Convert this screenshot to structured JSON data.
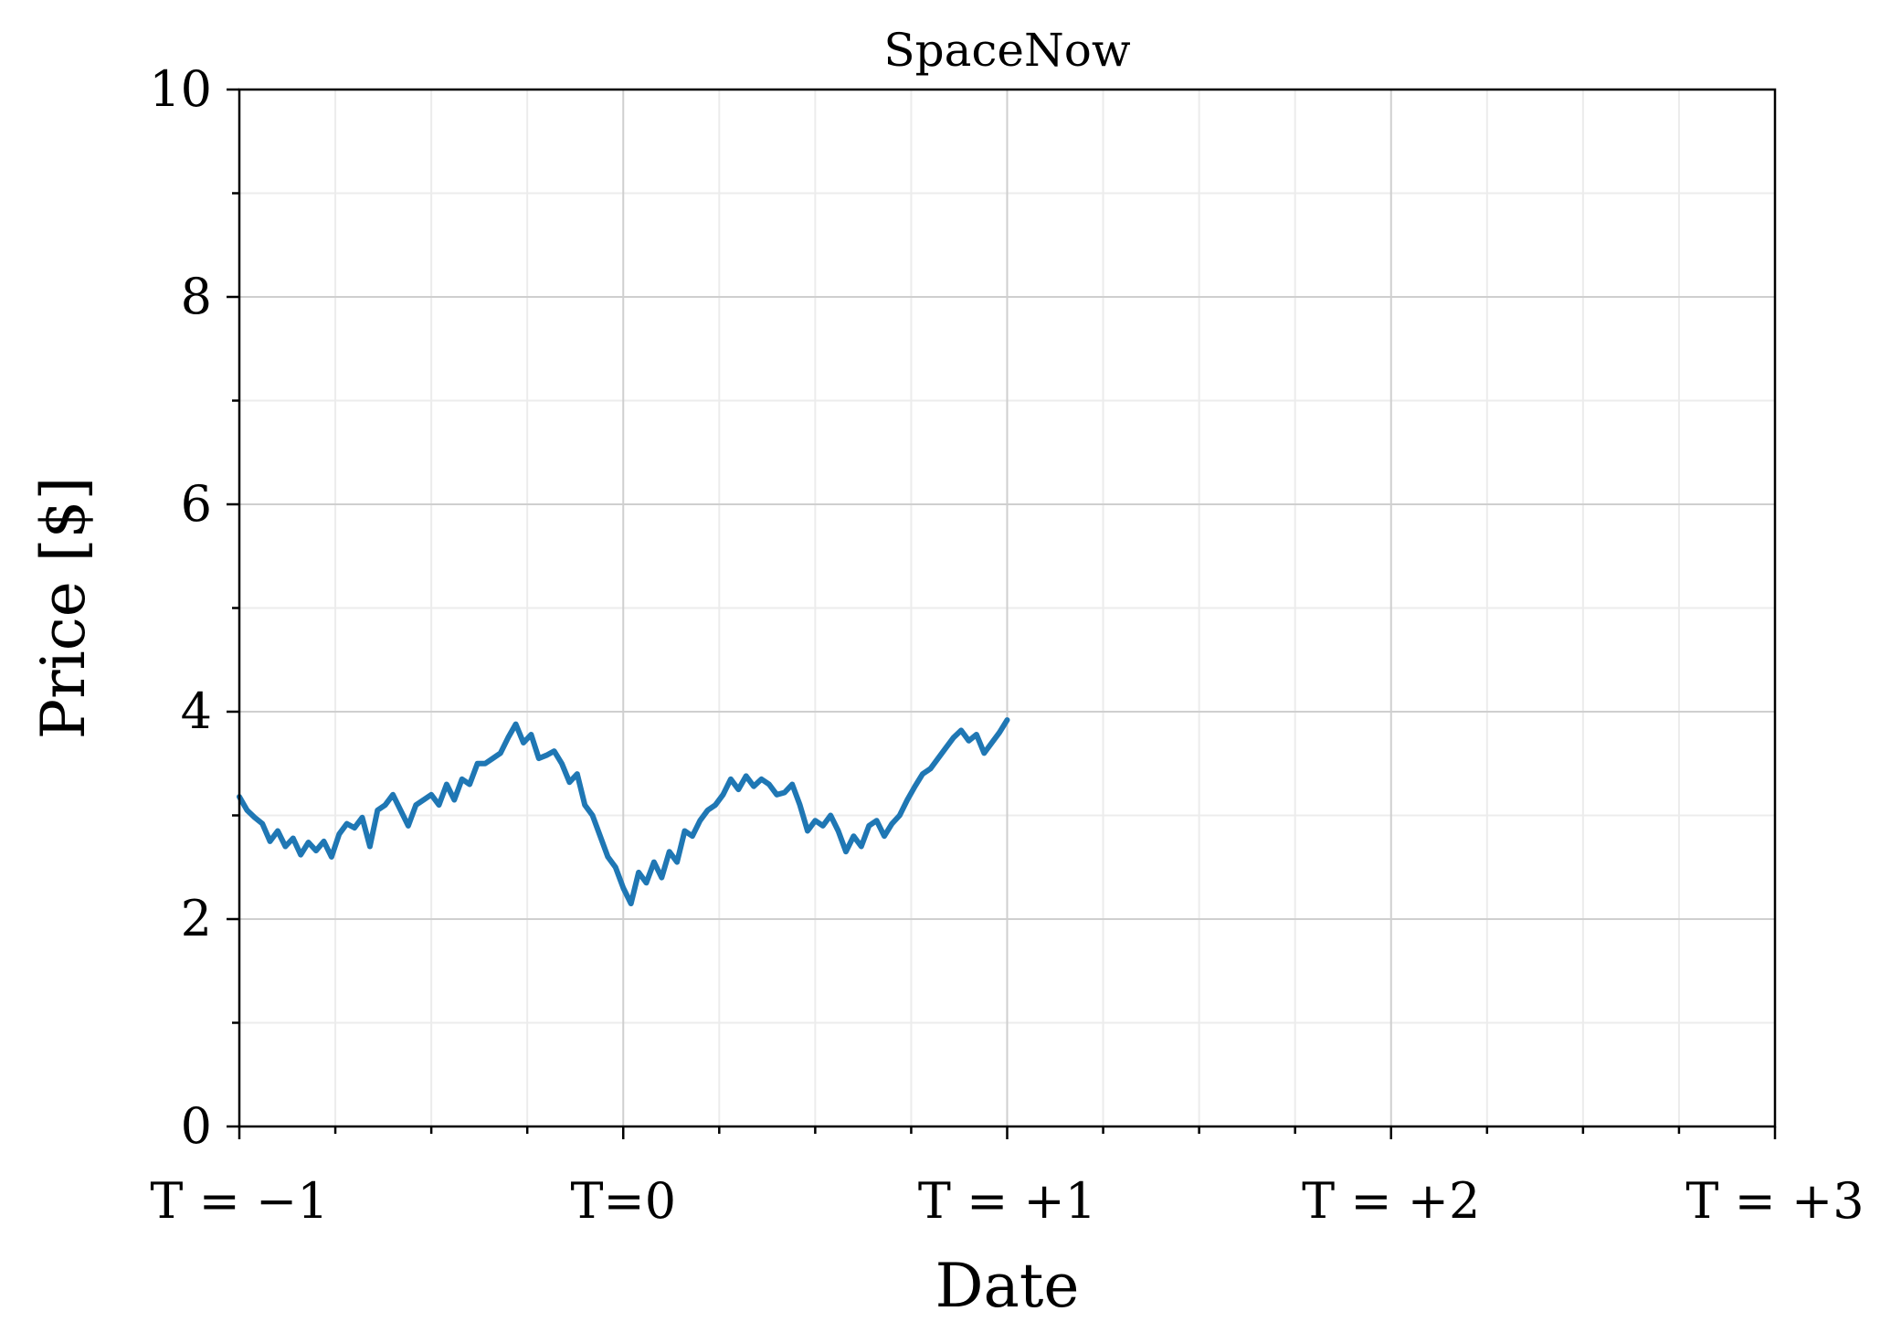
{
  "chart_data": {
    "type": "line",
    "title": "SpaceNow",
    "xlabel": "Date",
    "ylabel": "Price [$]",
    "xlim": [
      -1,
      3
    ],
    "ylim": [
      0,
      10
    ],
    "x_tick_values": [
      -1,
      0,
      1,
      2,
      3
    ],
    "x_tick_labels": [
      "T = −1",
      "T=0",
      "T = +1",
      "T = +2",
      "T = +3"
    ],
    "y_tick_values": [
      0,
      2,
      4,
      6,
      8,
      10
    ],
    "y_tick_labels": [
      "0",
      "2",
      "4",
      "6",
      "8",
      "10"
    ],
    "x_minor_step": 0.25,
    "y_minor_step": 1,
    "grid": true,
    "legend": "none",
    "color": "#1f77b4",
    "series": [
      {
        "x": [
          -1.0,
          -0.98,
          -0.96,
          -0.94,
          -0.92,
          -0.9,
          -0.88,
          -0.86,
          -0.84,
          -0.82,
          -0.8,
          -0.78,
          -0.76,
          -0.74,
          -0.72,
          -0.7,
          -0.68,
          -0.66,
          -0.64,
          -0.62,
          -0.6,
          -0.58,
          -0.56,
          -0.54,
          -0.52,
          -0.5,
          -0.48,
          -0.46,
          -0.44,
          -0.42,
          -0.4,
          -0.38,
          -0.36,
          -0.34,
          -0.32,
          -0.3,
          -0.28,
          -0.26,
          -0.24,
          -0.22,
          -0.2,
          -0.18,
          -0.16,
          -0.14,
          -0.12,
          -0.1,
          -0.08,
          -0.06,
          -0.04,
          -0.02,
          0.0,
          0.02,
          0.04,
          0.06,
          0.08,
          0.1,
          0.12,
          0.14,
          0.16,
          0.18,
          0.2,
          0.22,
          0.24,
          0.26,
          0.28,
          0.3,
          0.32,
          0.34,
          0.36,
          0.38,
          0.4,
          0.42,
          0.44,
          0.46,
          0.48,
          0.5,
          0.52,
          0.54,
          0.56,
          0.58,
          0.6,
          0.62,
          0.64,
          0.66,
          0.68,
          0.7,
          0.72,
          0.74,
          0.76,
          0.78,
          0.8,
          0.82,
          0.84,
          0.86,
          0.88,
          0.9,
          0.92,
          0.94,
          0.96,
          0.98,
          1.0
        ],
        "y": [
          3.18,
          3.05,
          2.98,
          2.92,
          2.75,
          2.85,
          2.7,
          2.78,
          2.62,
          2.74,
          2.66,
          2.75,
          2.6,
          2.82,
          2.92,
          2.88,
          2.98,
          2.7,
          3.05,
          3.1,
          3.2,
          3.05,
          2.9,
          3.1,
          3.15,
          3.2,
          3.1,
          3.3,
          3.15,
          3.35,
          3.3,
          3.5,
          3.5,
          3.55,
          3.6,
          3.75,
          3.88,
          3.7,
          3.78,
          3.55,
          3.58,
          3.62,
          3.5,
          3.32,
          3.4,
          3.1,
          3.0,
          2.8,
          2.6,
          2.5,
          2.3,
          2.15,
          2.45,
          2.35,
          2.55,
          2.4,
          2.65,
          2.55,
          2.85,
          2.8,
          2.95,
          3.05,
          3.1,
          3.2,
          3.35,
          3.25,
          3.38,
          3.28,
          3.35,
          3.3,
          3.2,
          3.22,
          3.3,
          3.1,
          2.85,
          2.95,
          2.9,
          3.0,
          2.85,
          2.65,
          2.8,
          2.7,
          2.9,
          2.95,
          2.8,
          2.92,
          3.0,
          3.15,
          3.28,
          3.4,
          3.45,
          3.55,
          3.65,
          3.75,
          3.82,
          3.72,
          3.78,
          3.6,
          3.7,
          3.8,
          3.92
        ]
      }
    ]
  }
}
